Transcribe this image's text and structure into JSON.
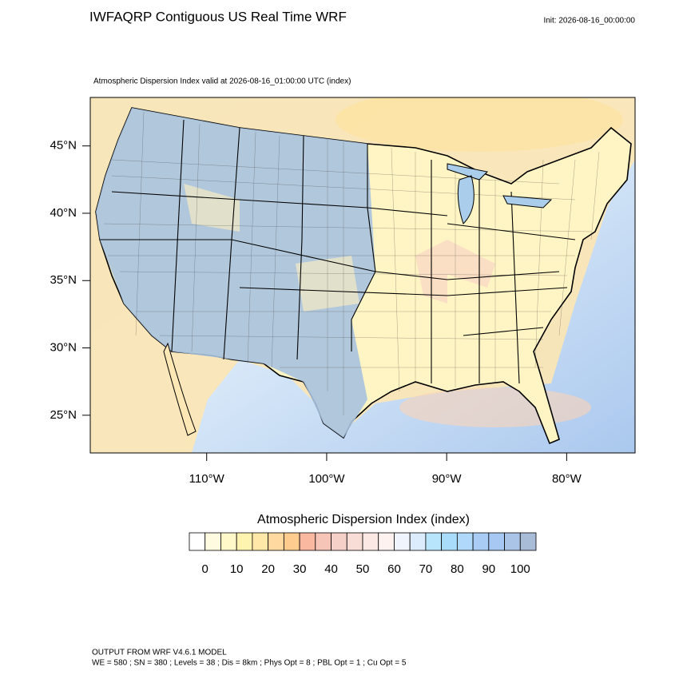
{
  "map": {
    "title": "IWFAQRP Contiguous US Real Time WRF",
    "init": "Init: 2026-08-16_00:00:00",
    "subtitle": "Atmospheric Dispersion Index valid at 2026-08-16_01:00:00 UTC   (index)",
    "lon_range": [
      -119.7,
      -74.3
    ],
    "lat_range": [
      22.2,
      48.6
    ],
    "lon_ticks": [
      {
        "value": -110,
        "label": "110°W"
      },
      {
        "value": -100,
        "label": "100°W"
      },
      {
        "value": -90,
        "label": "90°W"
      },
      {
        "value": -80,
        "label": "80°W"
      }
    ],
    "lat_ticks": [
      {
        "value": 45,
        "label": "45°N"
      },
      {
        "value": 40,
        "label": "40°N"
      },
      {
        "value": 35,
        "label": "35°N"
      },
      {
        "value": 30,
        "label": "30°N"
      },
      {
        "value": 25,
        "label": "25°N"
      }
    ],
    "colorbar": {
      "title": "Atmospheric Dispersion Index  (index)",
      "lim": [
        0,
        100
      ],
      "ticks": [
        0,
        10,
        20,
        30,
        40,
        50,
        60,
        70,
        80,
        90,
        100
      ],
      "colors": [
        "#ffffff",
        "#fffbe0",
        "#fff8c8",
        "#fff3b0",
        "#ffe8a8",
        "#ffd9a0",
        "#ffcc90",
        "#fbb8a0",
        "#f7c4b8",
        "#f5d0c8",
        "#f8dcd6",
        "#fbe8e4",
        "#fdf2f0",
        "#f0f4fc",
        "#dcecfc",
        "#b8e4fc",
        "#a8dcfa",
        "#b0d8fa",
        "#a8ccf4",
        "#a8c8f4",
        "#aac4e8",
        "#a8bcd8"
      ]
    },
    "footer": [
      "OUTPUT FROM WRF V4.6.1 MODEL",
      "WE = 580 ; SN = 380 ; Levels = 38 ; Dis = 8km ; Phys Opt = 8 ; PBL Opt = 1 ; Cu Opt = 5"
    ]
  }
}
